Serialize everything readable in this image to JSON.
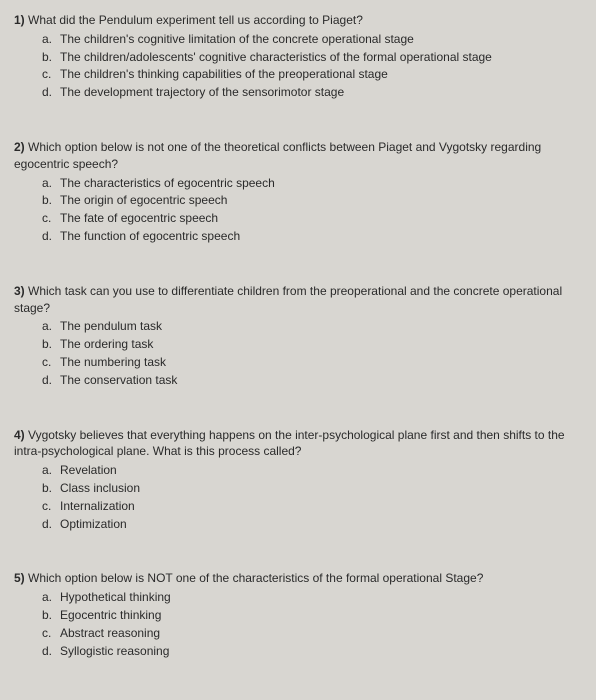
{
  "questions": [
    {
      "number": "1)",
      "text": "What did the Pendulum experiment tell us according to Piaget?",
      "options": [
        {
          "letter": "a.",
          "text": "The children's cognitive limitation of the concrete operational stage"
        },
        {
          "letter": "b.",
          "text": "The children/adolescents' cognitive characteristics of the formal operational stage"
        },
        {
          "letter": "c.",
          "text": "The children's thinking capabilities of the preoperational stage"
        },
        {
          "letter": "d.",
          "text": "The development trajectory of the sensorimotor stage"
        }
      ]
    },
    {
      "number": "2)",
      "text": "Which option below is not one of the theoretical conflicts between Piaget and Vygotsky regarding egocentric speech?",
      "options": [
        {
          "letter": "a.",
          "text": "The characteristics of egocentric speech"
        },
        {
          "letter": "b.",
          "text": "The origin of egocentric speech"
        },
        {
          "letter": "c.",
          "text": "The fate of egocentric speech"
        },
        {
          "letter": "d.",
          "text": "The function of egocentric speech"
        }
      ]
    },
    {
      "number": "3)",
      "text": "Which task can you use to differentiate children from the preoperational and the concrete operational stage?",
      "options": [
        {
          "letter": "a.",
          "text": "The pendulum task"
        },
        {
          "letter": "b.",
          "text": "The ordering task"
        },
        {
          "letter": "c.",
          "text": "The numbering task"
        },
        {
          "letter": "d.",
          "text": "The conservation task"
        }
      ]
    },
    {
      "number": "4)",
      "text": "Vygotsky believes that everything happens on the inter-psychological plane first and then shifts to the intra-psychological plane. What is this process called?",
      "options": [
        {
          "letter": "a.",
          "text": "Revelation"
        },
        {
          "letter": "b.",
          "text": "Class inclusion"
        },
        {
          "letter": "c.",
          "text": "Internalization"
        },
        {
          "letter": "d.",
          "text": "Optimization"
        }
      ]
    },
    {
      "number": "5)",
      "text": "Which option below is NOT one of the characteristics of the formal operational Stage?",
      "options": [
        {
          "letter": "a.",
          "text": "Hypothetical thinking"
        },
        {
          "letter": "b.",
          "text": "Egocentric thinking"
        },
        {
          "letter": "c.",
          "text": "Abstract reasoning"
        },
        {
          "letter": "d.",
          "text": "Syllogistic reasoning"
        }
      ]
    }
  ]
}
